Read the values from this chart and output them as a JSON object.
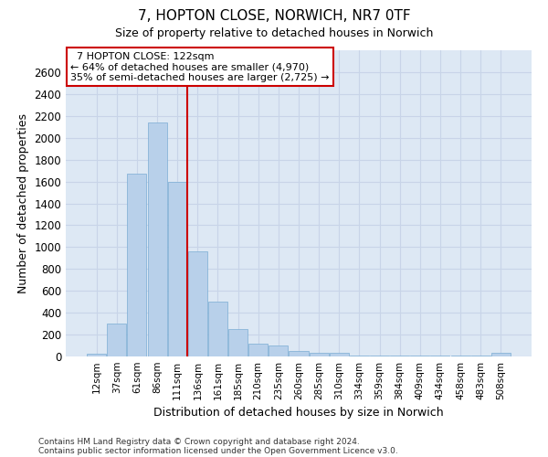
{
  "title_line1": "7, HOPTON CLOSE, NORWICH, NR7 0TF",
  "title_line2": "Size of property relative to detached houses in Norwich",
  "xlabel": "Distribution of detached houses by size in Norwich",
  "ylabel": "Number of detached properties",
  "footer_line1": "Contains HM Land Registry data © Crown copyright and database right 2024.",
  "footer_line2": "Contains public sector information licensed under the Open Government Licence v3.0.",
  "annotation_line1": "7 HOPTON CLOSE: 122sqm",
  "annotation_line2": "← 64% of detached houses are smaller (4,970)",
  "annotation_line3": "35% of semi-detached houses are larger (2,725) →",
  "bar_labels": [
    "12sqm",
    "37sqm",
    "61sqm",
    "86sqm",
    "111sqm",
    "136sqm",
    "161sqm",
    "185sqm",
    "210sqm",
    "235sqm",
    "260sqm",
    "285sqm",
    "310sqm",
    "334sqm",
    "359sqm",
    "384sqm",
    "409sqm",
    "434sqm",
    "458sqm",
    "483sqm",
    "508sqm"
  ],
  "bar_values": [
    25,
    300,
    1670,
    2140,
    1600,
    960,
    505,
    250,
    120,
    100,
    50,
    30,
    35,
    5,
    5,
    5,
    5,
    5,
    5,
    5,
    30
  ],
  "bar_color": "#b8d0ea",
  "bar_edgecolor": "#7aadd4",
  "vline_x": 4.5,
  "vline_color": "#cc0000",
  "annotation_box_edgecolor": "#cc0000",
  "ylim": [
    0,
    2800
  ],
  "yticks": [
    0,
    200,
    400,
    600,
    800,
    1000,
    1200,
    1400,
    1600,
    1800,
    2000,
    2200,
    2400,
    2600
  ],
  "grid_color": "#c8d4e8",
  "background_color": "#dde8f4",
  "fig_width": 6.0,
  "fig_height": 5.0,
  "dpi": 100
}
